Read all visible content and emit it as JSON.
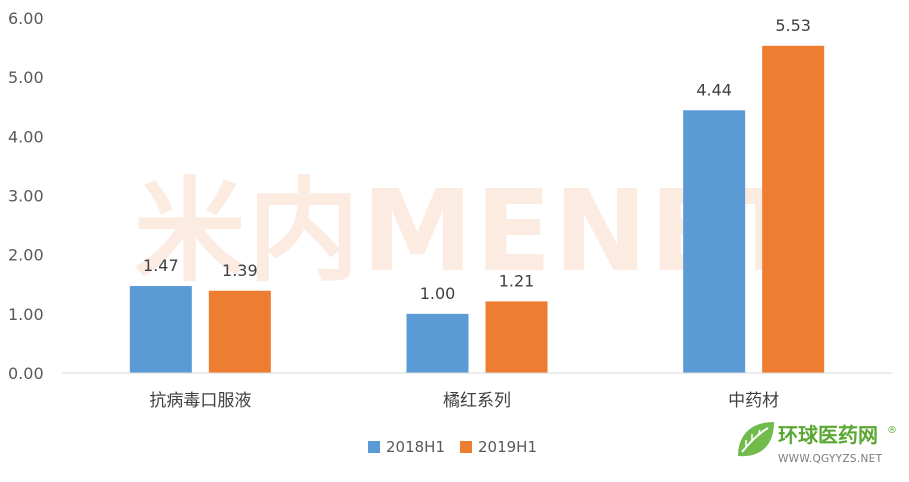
{
  "chart_data": {
    "type": "bar",
    "categories": [
      "抗病毒口服液",
      "橘红系列",
      "中药材"
    ],
    "series": [
      {
        "name": "2018H1",
        "values": [
          1.47,
          1.0,
          4.44
        ],
        "color": "#5B9BD5"
      },
      {
        "name": "2019H1",
        "values": [
          1.39,
          1.21,
          5.53
        ],
        "color": "#ED7D31"
      }
    ],
    "yticks": [
      "0.00",
      "1.00",
      "2.00",
      "3.00",
      "4.00",
      "5.00",
      "6.00"
    ],
    "ylim": [
      0,
      6
    ],
    "grid": false,
    "legend": "bottom",
    "data_labels": true
  },
  "watermark": {
    "text": "米内MENET"
  },
  "logo": {
    "name": "环球医药网",
    "registered": "®",
    "url": "WWW.QGYYZS.NET",
    "icon": "leaf-logo-icon",
    "color": "#5aa832"
  }
}
